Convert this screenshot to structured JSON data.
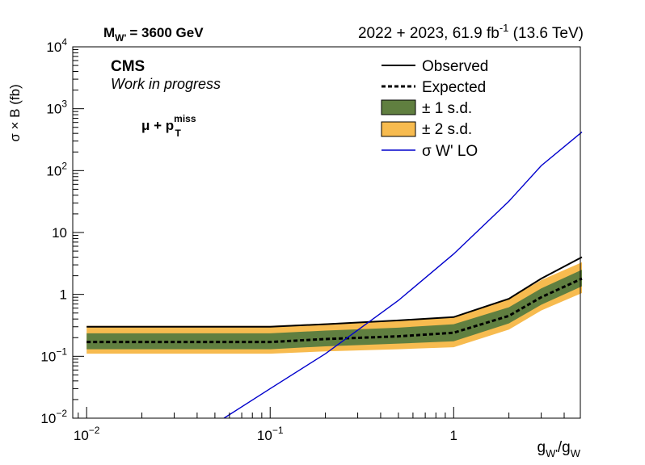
{
  "header": {
    "mass_label_main": "M",
    "mass_label_sub": "W'",
    "mass_label_rest": "= 3600 GeV",
    "lumi_main": "2022 + 2023, 61.9 fb",
    "lumi_sup": "-1",
    "lumi_rest": " (13.6 TeV)"
  },
  "labels": {
    "cms": "CMS",
    "status": "Work in progress",
    "channel_mu": "μ + p",
    "channel_sup": "miss",
    "channel_sub": "T"
  },
  "axes": {
    "ylabel": "σ × B  (fb)",
    "xlabel_g1": "g",
    "xlabel_sub1": "W'",
    "xlabel_slash": "/g",
    "xlabel_sub2": "W",
    "xticks": [
      {
        "value": 0.01,
        "base": "10",
        "exp": "−2"
      },
      {
        "value": 0.1,
        "base": "10",
        "exp": "−1"
      },
      {
        "value": 1,
        "base": "1",
        "exp": ""
      }
    ],
    "yticks": [
      {
        "value": 0.01,
        "base": "10",
        "exp": "−2"
      },
      {
        "value": 0.1,
        "base": "10",
        "exp": "−1"
      },
      {
        "value": 1,
        "base": "1",
        "exp": ""
      },
      {
        "value": 10,
        "base": "10",
        "exp": ""
      },
      {
        "value": 100,
        "base": "10",
        "exp": "2"
      },
      {
        "value": 1000,
        "base": "10",
        "exp": "3"
      },
      {
        "value": 10000,
        "base": "10",
        "exp": "4"
      }
    ]
  },
  "legend": [
    {
      "key": "observed",
      "label": "Observed"
    },
    {
      "key": "expected",
      "label": "Expected"
    },
    {
      "key": "sd1",
      "label": "± 1 s.d."
    },
    {
      "key": "sd2",
      "label": "± 2 s.d."
    },
    {
      "key": "theory",
      "label": "σ W' LO"
    }
  ],
  "chart_data": {
    "type": "line",
    "xscale": "log",
    "yscale": "log",
    "xlim": [
      0.0084,
      4.9
    ],
    "ylim": [
      0.01,
      10000
    ],
    "grid": false,
    "legend_position": "top-right",
    "x": [
      0.01,
      0.02,
      0.05,
      0.1,
      0.2,
      0.5,
      1,
      2,
      3,
      5
    ],
    "series": [
      {
        "name": "Observed",
        "color": "#000000",
        "style": "solid",
        "values": [
          0.3,
          0.3,
          0.3,
          0.3,
          0.33,
          0.38,
          0.43,
          0.85,
          1.8,
          4.0
        ]
      },
      {
        "name": "Expected",
        "color": "#000000",
        "style": "dashed",
        "values": [
          0.17,
          0.17,
          0.17,
          0.17,
          0.19,
          0.21,
          0.24,
          0.45,
          0.9,
          1.8
        ]
      },
      {
        "name": "σ W' LO",
        "color": "#0000cc",
        "style": "solid",
        "x": [
          0.056,
          0.1,
          0.2,
          0.5,
          1.0,
          2.0,
          3.0,
          5.0
        ],
        "values": [
          0.01,
          0.03,
          0.11,
          0.8,
          4.5,
          32,
          120,
          420
        ]
      }
    ],
    "bands": [
      {
        "name": "± 2 s.d.",
        "color": "#f7bb4f",
        "lower": [
          0.11,
          0.11,
          0.11,
          0.11,
          0.12,
          0.13,
          0.14,
          0.27,
          0.55,
          1.05
        ],
        "upper": [
          0.31,
          0.31,
          0.31,
          0.31,
          0.34,
          0.38,
          0.43,
          0.85,
          1.7,
          3.3
        ]
      },
      {
        "name": "± 1 s.d.",
        "color": "#607f40",
        "lower": [
          0.13,
          0.13,
          0.13,
          0.13,
          0.145,
          0.16,
          0.175,
          0.34,
          0.68,
          1.35
        ],
        "upper": [
          0.235,
          0.235,
          0.235,
          0.235,
          0.26,
          0.29,
          0.33,
          0.62,
          1.25,
          2.5
        ]
      }
    ]
  }
}
